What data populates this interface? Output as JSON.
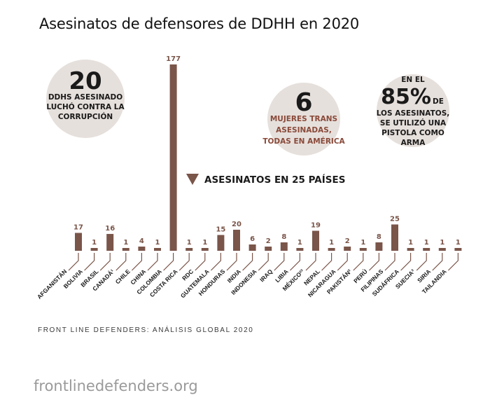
{
  "page": {
    "title": "Asesinatos de defensores de DDHH en 2020",
    "source": "FRONT LINE DEFENDERS: ANÁLISIS GLOBAL 2020",
    "website": "frontlinedefenders.org"
  },
  "callouts": [
    {
      "big": "20",
      "lines": [
        "DDHS ASESINADO",
        "LUCHÓ CONTRA LA",
        "CORRUPCIÓN"
      ],
      "big_color": "#1a1a1a",
      "text_color": "#1a1a1a"
    },
    {
      "big": "6",
      "lines": [
        "MUJERES TRANS",
        "ASESINADAS,",
        "TODAS EN AMÉRICA"
      ],
      "big_color": "#1a1a1a",
      "text_color": "#8a4a3a"
    },
    {
      "big": "85%",
      "pre": "EN EL",
      "post": "DE",
      "lines": [
        "LOS ASESINATOS,",
        "SE UTILIZÓ UNA",
        "PISTOLA COMO",
        "ARMA"
      ],
      "big_color": "#1a1a1a",
      "text_color": "#1a1a1a"
    }
  ],
  "annotation": {
    "label": "ASESINATOS EN 25 PAÍSES"
  },
  "colors": {
    "bar": "#7a5549",
    "circle": "#e6e0dc",
    "value_label": "#7a5549"
  },
  "chart_data": {
    "type": "bar",
    "title": "Asesinatos de defensores de DDHH en 2020",
    "categories": [
      "AFGANISTÁN",
      "BOLIVIA",
      "BRASIL",
      "CANADÁ¹",
      "CHILE",
      "CHINA",
      "COLOMBIA",
      "COSTA RICA",
      "RDC",
      "GUATEMALA",
      "HONDURAS",
      "INDIA",
      "INDONESIA",
      "IRAQ",
      "LIBIA",
      "MÉXICO²³",
      "NEPAL",
      "NICARAGUA",
      "PAKISTÁN²",
      "PERÚ",
      "FILIPINAS",
      "SUDÁFRICA",
      "SUECIA³",
      "SIRIA",
      "TAILANDIA"
    ],
    "values": [
      17,
      1,
      16,
      1,
      4,
      1,
      177,
      1,
      1,
      15,
      20,
      6,
      2,
      8,
      1,
      19,
      1,
      2,
      1,
      8,
      25,
      1,
      1,
      1,
      1
    ],
    "xlabel": "",
    "ylabel": "",
    "grid": false,
    "legend": "none"
  }
}
